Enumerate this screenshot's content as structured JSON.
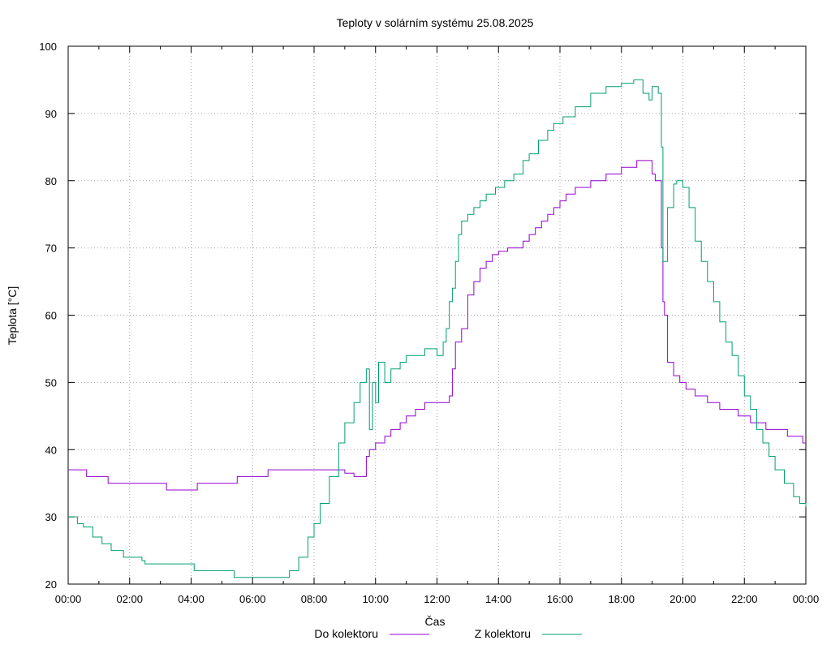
{
  "chart_data": {
    "type": "line",
    "title": "Teploty v solárním systému 25.08.2025",
    "xlabel": "Čas",
    "ylabel": "Teplota [°C]",
    "xlim": [
      0,
      24
    ],
    "ylim": [
      20,
      100
    ],
    "yticks": [
      20,
      30,
      40,
      50,
      60,
      70,
      80,
      90,
      100
    ],
    "xticks": [
      {
        "h": 0,
        "label": "00:00"
      },
      {
        "h": 2,
        "label": "02:00"
      },
      {
        "h": 4,
        "label": "04:00"
      },
      {
        "h": 6,
        "label": "06:00"
      },
      {
        "h": 8,
        "label": "08:00"
      },
      {
        "h": 10,
        "label": "10:00"
      },
      {
        "h": 12,
        "label": "12:00"
      },
      {
        "h": 14,
        "label": "14:00"
      },
      {
        "h": 16,
        "label": "16:00"
      },
      {
        "h": 18,
        "label": "18:00"
      },
      {
        "h": 20,
        "label": "20:00"
      },
      {
        "h": 22,
        "label": "22:00"
      },
      {
        "h": 24,
        "label": "00:00"
      }
    ],
    "grid": true,
    "legend_position": "bottom",
    "series": [
      {
        "name": "Do kolektoru",
        "color": "#9400d3",
        "points": [
          [
            0,
            37
          ],
          [
            0.6,
            37
          ],
          [
            0.6,
            36
          ],
          [
            1.3,
            36
          ],
          [
            1.3,
            35
          ],
          [
            3.2,
            35
          ],
          [
            3.2,
            34
          ],
          [
            4.2,
            34
          ],
          [
            4.2,
            35
          ],
          [
            5.5,
            35
          ],
          [
            5.5,
            36
          ],
          [
            6.5,
            36
          ],
          [
            6.5,
            37
          ],
          [
            8.8,
            37
          ],
          [
            9.0,
            36.5
          ],
          [
            9.3,
            36
          ],
          [
            9.7,
            36
          ],
          [
            9.7,
            39
          ],
          [
            9.8,
            40
          ],
          [
            10.0,
            41
          ],
          [
            10.3,
            42
          ],
          [
            10.5,
            43
          ],
          [
            10.8,
            44
          ],
          [
            11.0,
            45
          ],
          [
            11.3,
            46
          ],
          [
            11.5,
            46
          ],
          [
            11.6,
            47
          ],
          [
            12.4,
            47
          ],
          [
            12.4,
            48
          ],
          [
            12.5,
            52
          ],
          [
            12.6,
            56
          ],
          [
            12.8,
            58
          ],
          [
            13.0,
            63
          ],
          [
            13.2,
            65
          ],
          [
            13.4,
            67
          ],
          [
            13.6,
            68
          ],
          [
            13.8,
            69
          ],
          [
            14.0,
            69.5
          ],
          [
            14.3,
            70
          ],
          [
            14.8,
            70
          ],
          [
            14.8,
            71
          ],
          [
            15.0,
            72
          ],
          [
            15.2,
            73
          ],
          [
            15.4,
            74
          ],
          [
            15.6,
            75
          ],
          [
            15.8,
            76
          ],
          [
            16.0,
            77
          ],
          [
            16.2,
            78
          ],
          [
            16.5,
            79
          ],
          [
            17.0,
            80
          ],
          [
            17.5,
            81
          ],
          [
            18.0,
            82
          ],
          [
            18.5,
            83
          ],
          [
            18.8,
            83
          ],
          [
            19.0,
            81
          ],
          [
            19.1,
            80
          ],
          [
            19.25,
            80
          ],
          [
            19.3,
            70
          ],
          [
            19.35,
            62
          ],
          [
            19.4,
            60
          ],
          [
            19.5,
            53
          ],
          [
            19.7,
            51
          ],
          [
            19.9,
            50
          ],
          [
            20.1,
            49
          ],
          [
            20.4,
            48
          ],
          [
            20.8,
            47
          ],
          [
            21.2,
            46
          ],
          [
            21.8,
            45
          ],
          [
            22.2,
            44
          ],
          [
            22.7,
            44
          ],
          [
            22.7,
            43
          ],
          [
            23.4,
            43
          ],
          [
            23.4,
            42
          ],
          [
            23.9,
            42
          ],
          [
            23.9,
            41
          ],
          [
            24,
            41
          ]
        ]
      },
      {
        "name": "Z kolektoru",
        "color": "#009e73",
        "points": [
          [
            0,
            30
          ],
          [
            0.3,
            29
          ],
          [
            0.5,
            28.5
          ],
          [
            0.8,
            27
          ],
          [
            1.1,
            26
          ],
          [
            1.4,
            25
          ],
          [
            1.8,
            24
          ],
          [
            2.4,
            23.5
          ],
          [
            2.5,
            23
          ],
          [
            4.0,
            23
          ],
          [
            4.1,
            22
          ],
          [
            5.3,
            22
          ],
          [
            5.4,
            21
          ],
          [
            7.0,
            21
          ],
          [
            7.2,
            22
          ],
          [
            7.5,
            24
          ],
          [
            7.8,
            27
          ],
          [
            8.0,
            29
          ],
          [
            8.2,
            32
          ],
          [
            8.5,
            36
          ],
          [
            8.8,
            41
          ],
          [
            9.0,
            44
          ],
          [
            9.3,
            47
          ],
          [
            9.5,
            50
          ],
          [
            9.7,
            52
          ],
          [
            9.8,
            43
          ],
          [
            9.9,
            50
          ],
          [
            10.0,
            47
          ],
          [
            10.1,
            53
          ],
          [
            10.3,
            50
          ],
          [
            10.5,
            52
          ],
          [
            10.8,
            53
          ],
          [
            11.0,
            54
          ],
          [
            11.3,
            54
          ],
          [
            11.6,
            55
          ],
          [
            12.0,
            54
          ],
          [
            12.2,
            56
          ],
          [
            12.3,
            58
          ],
          [
            12.4,
            62
          ],
          [
            12.5,
            64
          ],
          [
            12.6,
            68
          ],
          [
            12.7,
            72
          ],
          [
            12.8,
            74
          ],
          [
            13.0,
            75
          ],
          [
            13.2,
            76
          ],
          [
            13.4,
            77
          ],
          [
            13.6,
            78
          ],
          [
            13.9,
            79
          ],
          [
            14.2,
            80
          ],
          [
            14.5,
            81
          ],
          [
            14.8,
            83
          ],
          [
            15.0,
            84
          ],
          [
            15.3,
            86
          ],
          [
            15.6,
            87.5
          ],
          [
            15.8,
            88.5
          ],
          [
            16.1,
            89.5
          ],
          [
            16.5,
            91
          ],
          [
            17.0,
            93
          ],
          [
            17.5,
            94
          ],
          [
            18.0,
            94.5
          ],
          [
            18.4,
            95
          ],
          [
            18.7,
            93
          ],
          [
            18.9,
            92
          ],
          [
            19.0,
            94
          ],
          [
            19.2,
            93
          ],
          [
            19.3,
            85
          ],
          [
            19.35,
            68
          ],
          [
            19.5,
            76
          ],
          [
            19.7,
            79.5
          ],
          [
            19.8,
            80
          ],
          [
            20.0,
            79
          ],
          [
            20.2,
            76
          ],
          [
            20.4,
            71
          ],
          [
            20.6,
            68
          ],
          [
            20.8,
            65
          ],
          [
            21.0,
            62
          ],
          [
            21.2,
            59
          ],
          [
            21.4,
            56
          ],
          [
            21.6,
            54
          ],
          [
            21.8,
            51
          ],
          [
            22.0,
            48
          ],
          [
            22.2,
            46
          ],
          [
            22.4,
            43
          ],
          [
            22.6,
            41
          ],
          [
            22.8,
            39
          ],
          [
            23.0,
            37
          ],
          [
            23.3,
            35
          ],
          [
            23.6,
            33
          ],
          [
            23.8,
            32
          ],
          [
            24,
            31.5
          ]
        ]
      }
    ]
  }
}
